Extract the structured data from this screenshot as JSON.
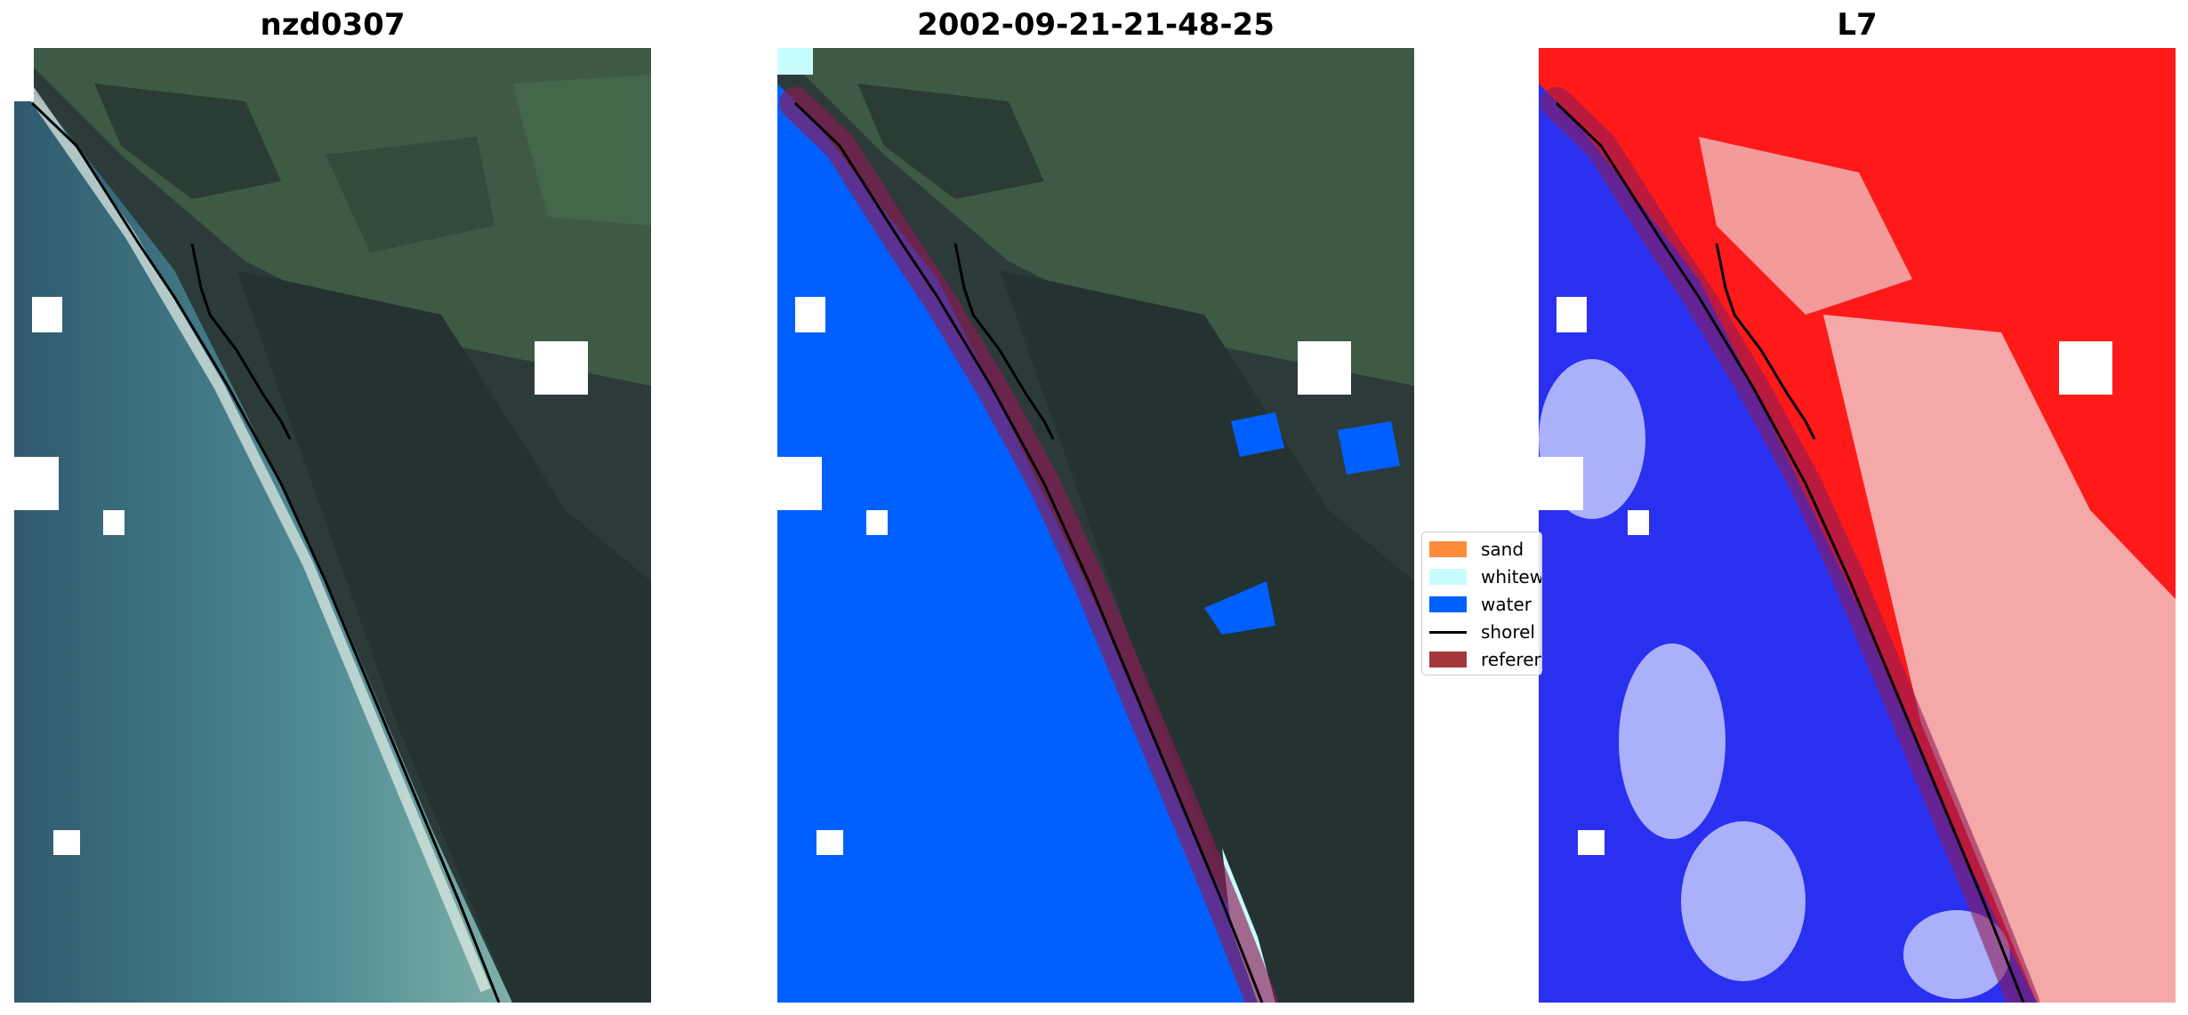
{
  "panels": {
    "rgb": {
      "title": "nzd0307"
    },
    "classified": {
      "title": "2002-09-21-21-48-25"
    },
    "mndwi": {
      "title": "L7"
    }
  },
  "legend": {
    "items": [
      {
        "label": "sand",
        "color": "#ff8c3c",
        "kind": "patch"
      },
      {
        "label": "whitew",
        "color": "#c8fdfd",
        "kind": "patch"
      },
      {
        "label": "water",
        "color": "#0060ff",
        "kind": "patch"
      },
      {
        "label": "shorel",
        "color": "#000000",
        "kind": "line"
      },
      {
        "label": "referen",
        "color": "#a33838",
        "kind": "patch"
      }
    ]
  },
  "colors": {
    "water": "#0060ff",
    "whitewater": "#c8fdfd",
    "land_index": "#ff1a1a",
    "water_index": "#2a30f0",
    "reference_buffer": "#8c1a56",
    "shoreline": "#000000"
  }
}
